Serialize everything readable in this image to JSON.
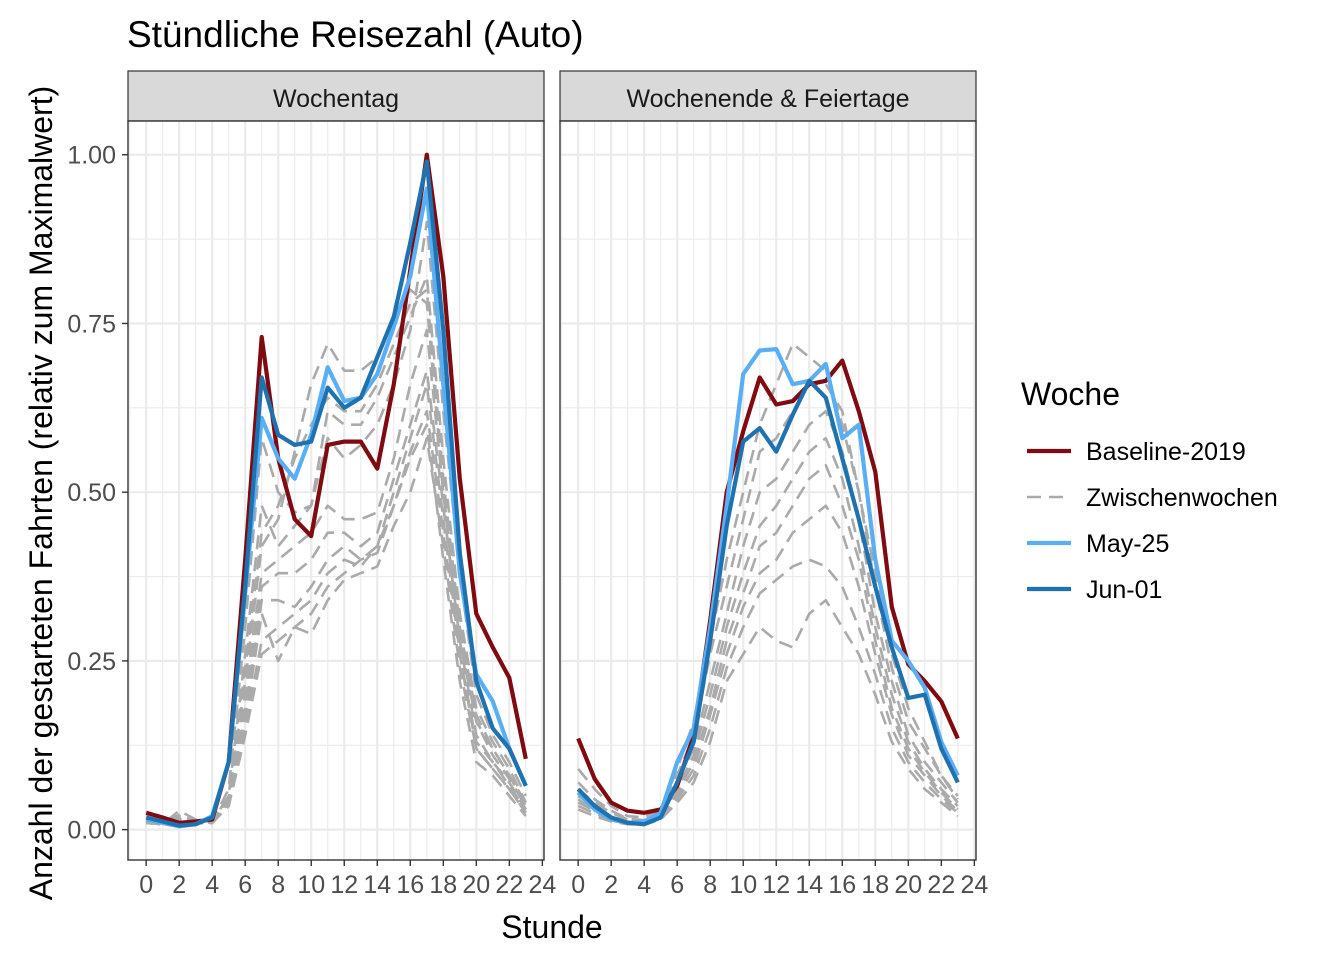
{
  "chart_data": {
    "type": "line",
    "title": "Stündliche Reisezahl (Auto)",
    "xlabel": "Stunde",
    "ylabel": "Anzahl der gestarteten Fahrten (relativ zum Maximalwert)",
    "x_ticks": [
      0,
      2,
      4,
      6,
      8,
      10,
      12,
      14,
      16,
      18,
      20,
      22,
      24
    ],
    "y_ticks": [
      0.0,
      0.25,
      0.5,
      0.75,
      1.0
    ],
    "y_tick_labels": [
      "0.00",
      "0.25",
      "0.50",
      "0.75",
      "1.00"
    ],
    "xlim": [
      -1.1,
      24.1
    ],
    "ylim": [
      -0.045,
      1.05
    ],
    "grid": true,
    "legend": {
      "title": "Woche",
      "position": "right",
      "entries": [
        {
          "label": "Baseline-2019",
          "color": "#7f0a10",
          "style": "solid"
        },
        {
          "label": "Zwischenwochen",
          "color": "#aaaaaa",
          "style": "dashed"
        },
        {
          "label": "May-25",
          "color": "#5aaef4",
          "style": "solid"
        },
        {
          "label": "Jun-01",
          "color": "#1f72b0",
          "style": "solid"
        }
      ]
    },
    "hours": [
      0,
      1,
      2,
      3,
      4,
      5,
      6,
      7,
      8,
      9,
      10,
      11,
      12,
      13,
      14,
      15,
      16,
      17,
      18,
      19,
      20,
      21,
      22,
      23
    ],
    "panels": [
      {
        "name": "Wochentag",
        "series": [
          {
            "name": "Baseline-2019",
            "values": [
              0.025,
              0.018,
              0.01,
              0.012,
              0.015,
              0.1,
              0.4,
              0.73,
              0.55,
              0.46,
              0.435,
              0.57,
              0.575,
              0.575,
              0.535,
              0.66,
              0.83,
              1.0,
              0.82,
              0.52,
              0.32,
              0.27,
              0.225,
              0.105
            ]
          },
          {
            "name": "May-25",
            "values": [
              0.015,
              0.01,
              0.005,
              0.008,
              0.02,
              0.1,
              0.35,
              0.61,
              0.55,
              0.52,
              0.585,
              0.685,
              0.635,
              0.64,
              0.675,
              0.745,
              0.82,
              0.95,
              0.66,
              0.38,
              0.23,
              0.19,
              0.12,
              0.065
            ]
          },
          {
            "name": "Jun-01",
            "values": [
              0.018,
              0.012,
              0.006,
              0.008,
              0.018,
              0.1,
              0.36,
              0.67,
              0.585,
              0.57,
              0.575,
              0.655,
              0.625,
              0.64,
              0.7,
              0.76,
              0.87,
              0.99,
              0.74,
              0.41,
              0.22,
              0.15,
              0.12,
              0.065
            ]
          },
          {
            "name": "Zwischenwochen",
            "values": [
              0.015,
              0.01,
              0.02,
              0.012,
              0.012,
              0.06,
              0.3,
              0.58,
              0.5,
              0.47,
              0.48,
              0.58,
              0.55,
              0.57,
              0.6,
              0.66,
              0.74,
              0.9,
              0.62,
              0.38,
              0.2,
              0.14,
              0.1,
              0.05
            ]
          },
          {
            "name": "Zwischenwochen",
            "values": [
              0.012,
              0.008,
              0.028,
              0.015,
              0.012,
              0.05,
              0.26,
              0.48,
              0.42,
              0.45,
              0.48,
              0.62,
              0.6,
              0.6,
              0.64,
              0.7,
              0.76,
              0.82,
              0.55,
              0.32,
              0.18,
              0.13,
              0.09,
              0.04
            ]
          },
          {
            "name": "Zwischenwochen",
            "values": [
              0.012,
              0.008,
              0.022,
              0.012,
              0.01,
              0.05,
              0.24,
              0.44,
              0.48,
              0.55,
              0.6,
              0.64,
              0.62,
              0.62,
              0.66,
              0.72,
              0.78,
              0.8,
              0.52,
              0.3,
              0.17,
              0.12,
              0.08,
              0.04
            ]
          },
          {
            "name": "Zwischenwochen",
            "values": [
              0.01,
              0.008,
              0.018,
              0.012,
              0.01,
              0.045,
              0.22,
              0.42,
              0.46,
              0.56,
              0.66,
              0.72,
              0.68,
              0.68,
              0.7,
              0.76,
              0.8,
              0.78,
              0.5,
              0.28,
              0.16,
              0.11,
              0.075,
              0.035
            ]
          },
          {
            "name": "Zwischenwochen",
            "values": [
              0.01,
              0.008,
              0.02,
              0.01,
              0.01,
              0.045,
              0.2,
              0.38,
              0.4,
              0.42,
              0.44,
              0.48,
              0.46,
              0.46,
              0.47,
              0.55,
              0.66,
              0.74,
              0.5,
              0.3,
              0.16,
              0.12,
              0.08,
              0.035
            ]
          },
          {
            "name": "Zwischenwochen",
            "values": [
              0.01,
              0.008,
              0.018,
              0.01,
              0.01,
              0.04,
              0.18,
              0.36,
              0.38,
              0.38,
              0.4,
              0.44,
              0.44,
              0.42,
              0.44,
              0.52,
              0.6,
              0.68,
              0.48,
              0.28,
              0.14,
              0.1,
              0.07,
              0.03
            ]
          },
          {
            "name": "Zwischenwochen",
            "values": [
              0.01,
              0.008,
              0.016,
              0.01,
              0.01,
              0.04,
              0.17,
              0.34,
              0.34,
              0.33,
              0.36,
              0.4,
              0.42,
              0.4,
              0.42,
              0.48,
              0.56,
              0.62,
              0.44,
              0.26,
              0.13,
              0.1,
              0.065,
              0.03
            ]
          },
          {
            "name": "Zwischenwochen",
            "values": [
              0.01,
              0.008,
              0.015,
              0.01,
              0.01,
              0.035,
              0.16,
              0.32,
              0.25,
              0.3,
              0.29,
              0.34,
              0.37,
              0.38,
              0.39,
              0.45,
              0.5,
              0.58,
              0.42,
              0.24,
              0.12,
              0.09,
              0.06,
              0.025
            ]
          },
          {
            "name": "Zwischenwochen",
            "values": [
              0.01,
              0.008,
              0.015,
              0.01,
              0.01,
              0.035,
              0.15,
              0.28,
              0.3,
              0.32,
              0.34,
              0.38,
              0.4,
              0.39,
              0.42,
              0.5,
              0.58,
              0.66,
              0.46,
              0.26,
              0.12,
              0.09,
              0.06,
              0.025
            ]
          },
          {
            "name": "Zwischenwochen",
            "values": [
              0.01,
              0.008,
              0.015,
              0.01,
              0.01,
              0.035,
              0.14,
              0.26,
              0.28,
              0.3,
              0.32,
              0.36,
              0.38,
              0.4,
              0.41,
              0.48,
              0.55,
              0.6,
              0.4,
              0.22,
              0.1,
              0.08,
              0.05,
              0.02
            ]
          }
        ]
      },
      {
        "name": "Wochenende & Feiertage",
        "series": [
          {
            "name": "Baseline-2019",
            "values": [
              0.135,
              0.075,
              0.04,
              0.028,
              0.025,
              0.03,
              0.065,
              0.14,
              0.31,
              0.5,
              0.59,
              0.67,
              0.63,
              0.635,
              0.66,
              0.665,
              0.695,
              0.62,
              0.53,
              0.33,
              0.245,
              0.22,
              0.19,
              0.135
            ]
          },
          {
            "name": "May-25",
            "values": [
              0.055,
              0.03,
              0.015,
              0.01,
              0.012,
              0.025,
              0.1,
              0.15,
              0.3,
              0.48,
              0.675,
              0.71,
              0.712,
              0.66,
              0.665,
              0.69,
              0.58,
              0.6,
              0.4,
              0.28,
              0.25,
              0.21,
              0.13,
              0.08
            ]
          },
          {
            "name": "Jun-01",
            "values": [
              0.06,
              0.035,
              0.018,
              0.01,
              0.008,
              0.018,
              0.07,
              0.13,
              0.28,
              0.45,
              0.575,
              0.595,
              0.56,
              0.615,
              0.665,
              0.64,
              0.55,
              0.46,
              0.36,
              0.27,
              0.195,
              0.2,
              0.12,
              0.07
            ]
          },
          {
            "name": "Zwischenwochen",
            "values": [
              0.09,
              0.06,
              0.035,
              0.02,
              0.018,
              0.03,
              0.09,
              0.16,
              0.28,
              0.4,
              0.5,
              0.6,
              0.66,
              0.72,
              0.7,
              0.68,
              0.6,
              0.5,
              0.38,
              0.26,
              0.18,
              0.13,
              0.08,
              0.05
            ]
          },
          {
            "name": "Zwischenwochen",
            "values": [
              0.07,
              0.045,
              0.028,
              0.016,
              0.014,
              0.03,
              0.08,
              0.14,
              0.26,
              0.36,
              0.46,
              0.56,
              0.58,
              0.62,
              0.66,
              0.66,
              0.62,
              0.5,
              0.36,
              0.24,
              0.16,
              0.12,
              0.08,
              0.045
            ]
          },
          {
            "name": "Zwischenwochen",
            "values": [
              0.06,
              0.04,
              0.025,
              0.015,
              0.012,
              0.025,
              0.07,
              0.12,
              0.22,
              0.32,
              0.42,
              0.5,
              0.52,
              0.56,
              0.6,
              0.62,
              0.56,
              0.46,
              0.32,
              0.22,
              0.14,
              0.1,
              0.07,
              0.04
            ]
          },
          {
            "name": "Zwischenwochen",
            "values": [
              0.05,
              0.035,
              0.02,
              0.012,
              0.01,
              0.02,
              0.06,
              0.11,
              0.2,
              0.3,
              0.38,
              0.45,
              0.48,
              0.52,
              0.56,
              0.58,
              0.52,
              0.42,
              0.3,
              0.2,
              0.13,
              0.09,
              0.06,
              0.035
            ]
          },
          {
            "name": "Zwischenwochen",
            "values": [
              0.045,
              0.03,
              0.018,
              0.01,
              0.01,
              0.02,
              0.055,
              0.1,
              0.18,
              0.28,
              0.35,
              0.42,
              0.44,
              0.48,
              0.52,
              0.54,
              0.48,
              0.4,
              0.28,
              0.18,
              0.12,
              0.085,
              0.055,
              0.03
            ]
          },
          {
            "name": "Zwischenwochen",
            "values": [
              0.04,
              0.028,
              0.016,
              0.01,
              0.009,
              0.018,
              0.05,
              0.09,
              0.17,
              0.26,
              0.33,
              0.38,
              0.4,
              0.44,
              0.46,
              0.48,
              0.44,
              0.36,
              0.26,
              0.17,
              0.11,
              0.08,
              0.05,
              0.028
            ]
          },
          {
            "name": "Zwischenwochen",
            "values": [
              0.035,
              0.024,
              0.014,
              0.009,
              0.008,
              0.016,
              0.045,
              0.08,
              0.15,
              0.24,
              0.3,
              0.35,
              0.37,
              0.39,
              0.4,
              0.39,
              0.36,
              0.3,
              0.23,
              0.15,
              0.1,
              0.07,
              0.045,
              0.025
            ]
          },
          {
            "name": "Zwischenwochen",
            "values": [
              0.03,
              0.02,
              0.012,
              0.008,
              0.007,
              0.015,
              0.04,
              0.07,
              0.13,
              0.22,
              0.26,
              0.3,
              0.28,
              0.27,
              0.32,
              0.34,
              0.3,
              0.26,
              0.2,
              0.13,
              0.09,
              0.06,
              0.04,
              0.02
            ]
          }
        ]
      }
    ]
  }
}
